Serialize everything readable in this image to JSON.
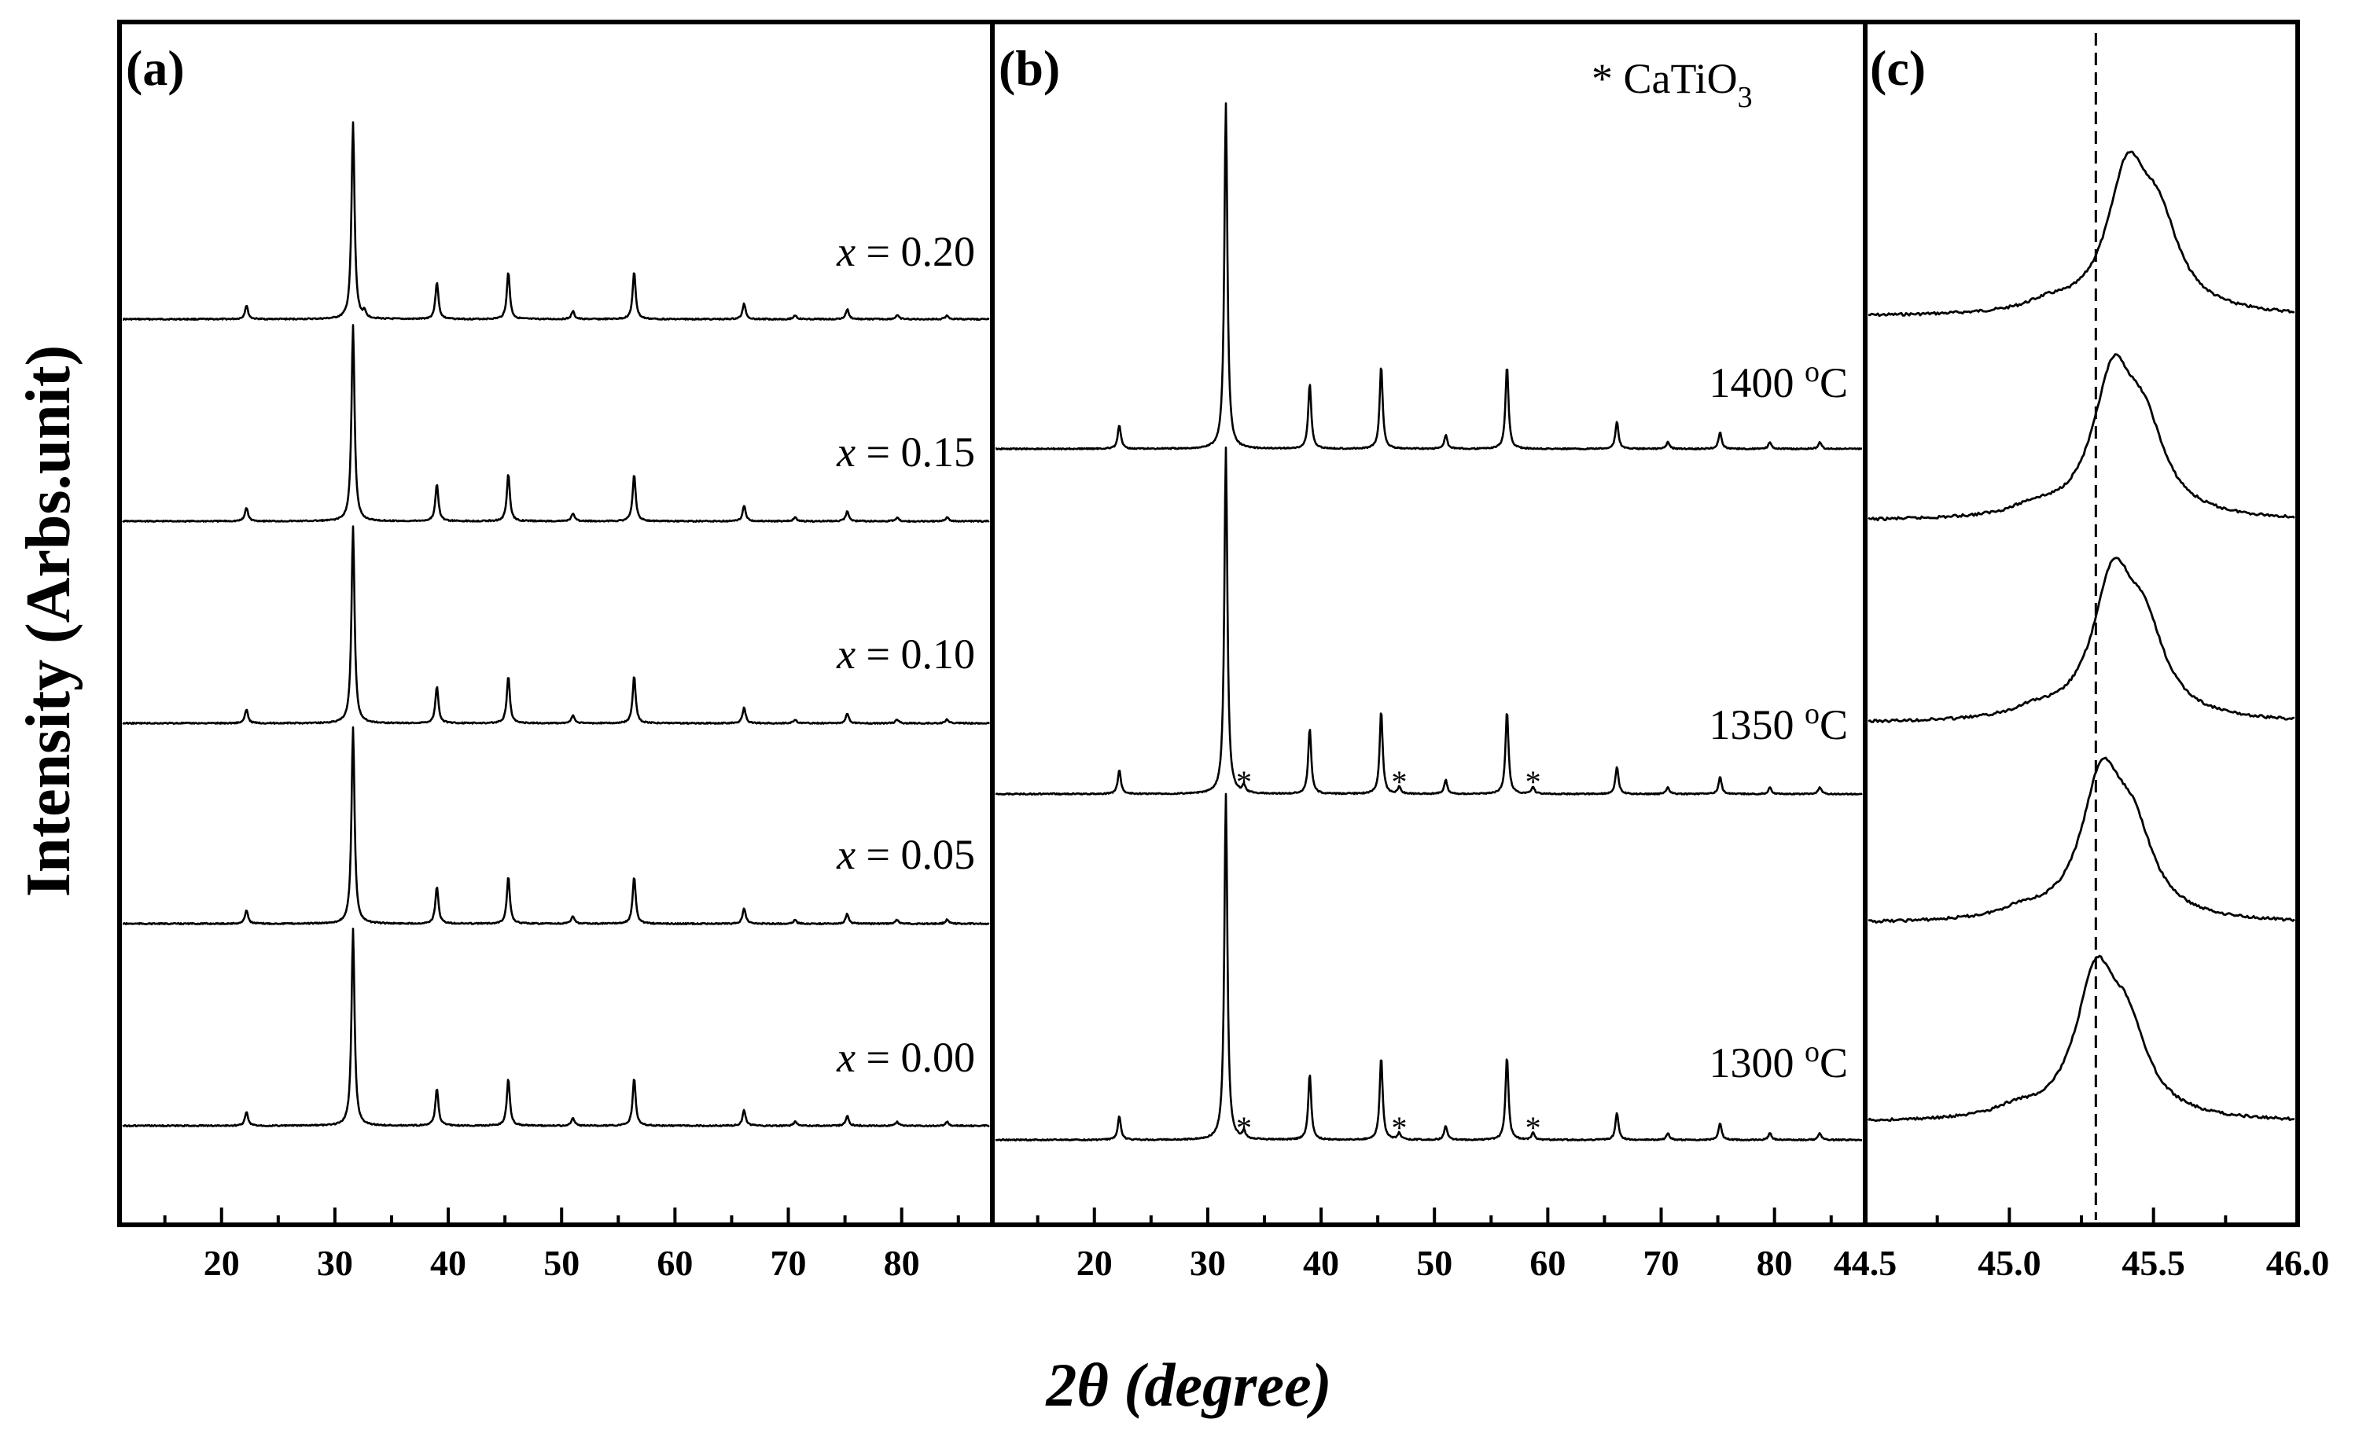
{
  "chart_data": [
    {
      "panel": "(a)",
      "type": "line",
      "xlabel": "2θ (degree)",
      "ylabel": "Intensity (Arbs.unit)",
      "xlim": [
        11,
        88
      ],
      "x_ticks": [
        20,
        30,
        40,
        50,
        60,
        70,
        80
      ],
      "peak_positions": [
        22.2,
        31.6,
        32.6,
        39.0,
        45.3,
        51.0,
        56.4,
        66.1,
        70.6,
        75.2,
        79.6,
        84.0
      ],
      "series": [
        {
          "name": "x = 0.20",
          "label_var": "x",
          "label_val": "= 0.20",
          "relative_intensities": [
            0.07,
            1.0,
            0.03,
            0.19,
            0.24,
            0.04,
            0.24,
            0.08,
            0.02,
            0.05,
            0.02,
            0.02
          ]
        },
        {
          "name": "x = 0.15",
          "label_var": "x",
          "label_val": "= 0.15",
          "relative_intensities": [
            0.07,
            1.0,
            0.0,
            0.19,
            0.24,
            0.04,
            0.24,
            0.08,
            0.02,
            0.05,
            0.02,
            0.02
          ]
        },
        {
          "name": "x = 0.10",
          "label_var": "x",
          "label_val": "= 0.10",
          "relative_intensities": [
            0.07,
            1.0,
            0.0,
            0.19,
            0.24,
            0.04,
            0.24,
            0.08,
            0.02,
            0.05,
            0.02,
            0.02
          ]
        },
        {
          "name": "x = 0.05",
          "label_var": "x",
          "label_val": "= 0.05",
          "relative_intensities": [
            0.07,
            1.0,
            0.0,
            0.19,
            0.24,
            0.04,
            0.24,
            0.08,
            0.02,
            0.05,
            0.02,
            0.02
          ]
        },
        {
          "name": "x = 0.00",
          "label_var": "x",
          "label_val": "= 0.00",
          "relative_intensities": [
            0.07,
            1.0,
            0.0,
            0.19,
            0.24,
            0.04,
            0.24,
            0.08,
            0.02,
            0.05,
            0.02,
            0.02
          ]
        }
      ]
    },
    {
      "panel": "(b)",
      "type": "line",
      "legend_text": "* CaTiO",
      "legend_subscript": "3",
      "xlim": [
        11,
        88
      ],
      "x_ticks": [
        20,
        30,
        40,
        50,
        60,
        70,
        80
      ],
      "peak_positions": [
        22.2,
        31.6,
        39.0,
        45.3,
        51.0,
        56.4,
        66.1,
        70.6,
        75.2,
        79.6,
        84.0
      ],
      "impurity_markers": [
        33.2,
        46.9,
        58.7
      ],
      "series": [
        {
          "name": "1400 °C",
          "temp": "1400",
          "unit": "C",
          "relative_intensities": [
            0.07,
            1.0,
            0.19,
            0.24,
            0.04,
            0.24,
            0.08,
            0.02,
            0.05,
            0.02,
            0.02
          ],
          "impurities": false
        },
        {
          "name": "1350 °C",
          "temp": "1350",
          "unit": "C",
          "relative_intensities": [
            0.07,
            1.0,
            0.19,
            0.24,
            0.04,
            0.24,
            0.08,
            0.02,
            0.05,
            0.02,
            0.02
          ],
          "impurities": true
        },
        {
          "name": "1300 °C",
          "temp": "1300",
          "unit": "C",
          "relative_intensities": [
            0.07,
            1.0,
            0.19,
            0.24,
            0.04,
            0.24,
            0.08,
            0.02,
            0.05,
            0.02,
            0.02
          ],
          "impurities": true
        }
      ]
    },
    {
      "panel": "(c)",
      "type": "line",
      "xlim": [
        44.5,
        46.0
      ],
      "x_ticks": [
        44.5,
        45.0,
        45.5,
        46.0
      ],
      "x_tick_labels": [
        "44.5",
        "45.0",
        "45.5",
        "46.0"
      ],
      "reference_line_x": 45.3,
      "series": [
        {
          "name": "x = 0.20",
          "peak_center": 45.41
        },
        {
          "name": "x = 0.15",
          "peak_center": 45.36
        },
        {
          "name": "x = 0.10",
          "peak_center": 45.36
        },
        {
          "name": "x = 0.05",
          "peak_center": 45.32
        },
        {
          "name": "x = 0.00",
          "peak_center": 45.3
        }
      ]
    }
  ],
  "labels": {
    "panel_a": "(a)",
    "panel_b": "(b)",
    "panel_c": "(c)",
    "ylabel": "Intensity (Arbs.unit)",
    "xlabel": "2θ (degree)"
  },
  "colors": {
    "line": "#000000",
    "background": "#ffffff"
  }
}
